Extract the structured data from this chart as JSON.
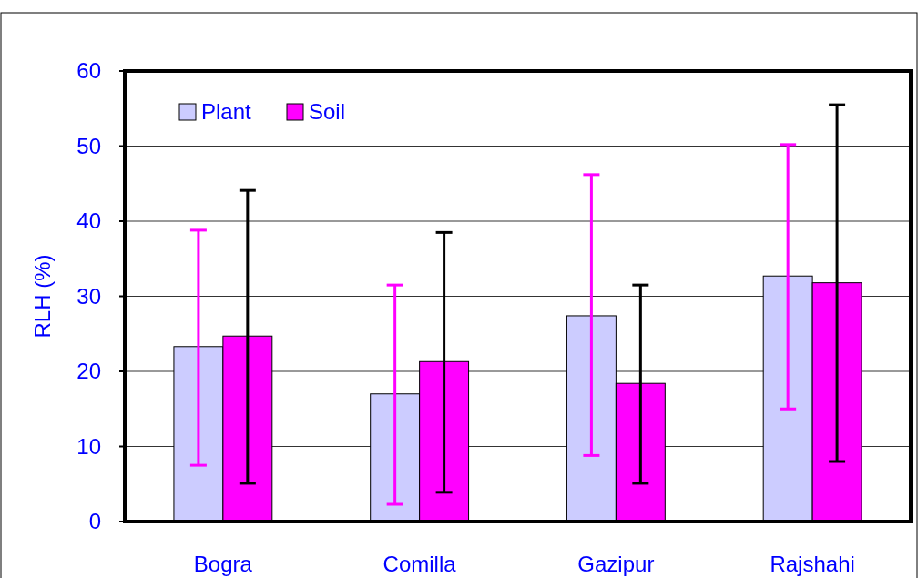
{
  "chart_data": {
    "type": "bar",
    "ylabel": "RLH (%)",
    "categories": [
      "Bogra",
      "Comilla",
      "Gazipur",
      "Rajshahi"
    ],
    "series": [
      {
        "name": "Plant",
        "color": "#ccccff",
        "values": [
          23.3,
          17.0,
          27.4,
          32.7
        ],
        "errors": [
          [
            7.5,
            38.8
          ],
          [
            2.3,
            31.5
          ],
          [
            8.8,
            46.2
          ],
          [
            15.0,
            50.2
          ]
        ]
      },
      {
        "name": "Soil",
        "color": "#ff00ff",
        "values": [
          24.7,
          21.3,
          18.4,
          31.8
        ],
        "errors": [
          [
            5.1,
            44.1
          ],
          [
            3.9,
            38.5
          ],
          [
            5.1,
            31.5
          ],
          [
            8.0,
            55.5
          ]
        ]
      }
    ],
    "ylim": [
      0,
      60
    ],
    "yticks": [
      0,
      10,
      20,
      30,
      40,
      50,
      60
    ],
    "grid": "y",
    "legend": "top left"
  }
}
